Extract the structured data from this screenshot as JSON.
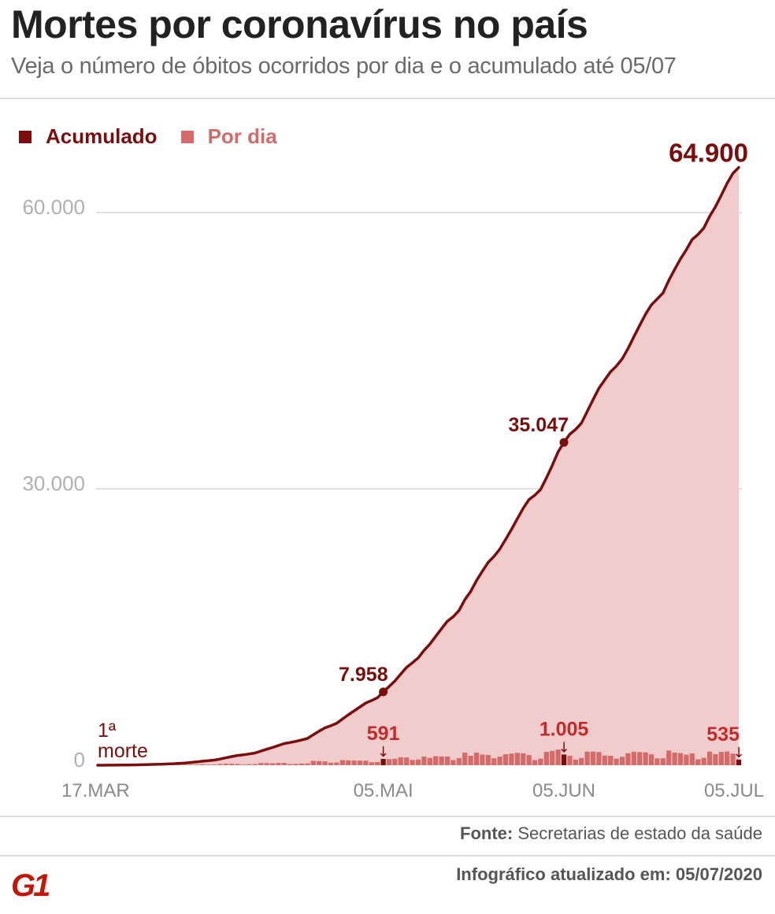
{
  "header": {
    "title": "Mortes por coronavírus no país",
    "subtitle": "Veja o número de óbitos ocorridos por dia e o acumulado até 05/07"
  },
  "legend": {
    "cumulative_label": "Acumulado",
    "daily_label": "Por dia"
  },
  "colors": {
    "cumulative": "#7b0d0d",
    "daily": "#d46a6a",
    "area": "#f0cccc",
    "gridline": "#d6d6d6",
    "tick_label": "#b0b0b0",
    "x_label": "#8a8a8a",
    "brand": "#c4170c"
  },
  "footer": {
    "source_label": "Fonte:",
    "source_text": "Secretarias de estado da saúde",
    "updated": "Infográfico atualizado em: 05/07/2020"
  },
  "logo": {
    "text": "G1",
    "name": "g1-logo"
  },
  "chart_data": {
    "type": "line",
    "title": "Mortes por coronavírus no país",
    "subtitle": "Veja o número de óbitos ocorridos por dia e o acumulado até 05/07",
    "x_start": "17.MAR",
    "x_end": "05.JUL",
    "x_ticks": [
      {
        "label": "17.MAR",
        "index": 0
      },
      {
        "label": "05.MAI",
        "index": 49
      },
      {
        "label": "05.JUN",
        "index": 80
      },
      {
        "label": "05.JUL",
        "index": 110
      }
    ],
    "y_ticks": [
      {
        "label": "0",
        "value": 0
      },
      {
        "label": "30.000",
        "value": 30000
      },
      {
        "label": "60.000",
        "value": 60000
      }
    ],
    "ylim": [
      0,
      65000
    ],
    "series": [
      {
        "name": "Acumulado",
        "style": "line+area",
        "values": [
          1,
          4,
          7,
          11,
          18,
          25,
          34,
          46,
          57,
          77,
          92,
          111,
          136,
          159,
          201,
          240,
          299,
          359,
          432,
          486,
          553,
          667,
          800,
          941,
          1057,
          1124,
          1223,
          1328,
          1532,
          1736,
          1924,
          2141,
          2354,
          2462,
          2587,
          2741,
          2906,
          3313,
          3704,
          4057,
          4286,
          4543,
          5017,
          5466,
          5901,
          6329,
          6750,
          7025,
          7321,
          7958,
          8536,
          9146,
          9897,
          10627,
          11123,
          11653,
          12461,
          13149,
          13993,
          14817,
          15633,
          16118,
          16792,
          17971,
          18859,
          20047,
          21048,
          22013,
          22666,
          23473,
          24512,
          25598,
          26754,
          27878,
          28834,
          29314,
          29937,
          31199,
          32548,
          34021,
          35047,
          35930,
          36455,
          37134,
          38406,
          39680,
          40919,
          41828,
          42720,
          43332,
          44118,
          45241,
          46510,
          47748,
          48954,
          49976,
          50617,
          51271,
          52645,
          53830,
          54971,
          55961,
          57070,
          57622,
          58314,
          59594,
          60632,
          61884,
          63174,
          64265,
          64900
        ]
      },
      {
        "name": "Por dia",
        "style": "bar",
        "values": [
          1,
          3,
          3,
          4,
          7,
          7,
          9,
          12,
          11,
          20,
          15,
          19,
          25,
          23,
          42,
          39,
          59,
          60,
          73,
          54,
          67,
          114,
          133,
          141,
          116,
          67,
          99,
          105,
          204,
          204,
          188,
          217,
          213,
          108,
          125,
          154,
          165,
          407,
          391,
          353,
          229,
          257,
          474,
          449,
          435,
          428,
          421,
          275,
          296,
          591,
          578,
          610,
          751,
          730,
          496,
          530,
          808,
          688,
          844,
          824,
          816,
          485,
          674,
          1179,
          888,
          1188,
          1001,
          965,
          653,
          807,
          1039,
          1086,
          1156,
          1124,
          956,
          480,
          623,
          1262,
          1349,
          1473,
          1005,
          883,
          525,
          679,
          1272,
          1274,
          1239,
          909,
          892,
          612,
          786,
          1123,
          1269,
          1238,
          1206,
          1022,
          641,
          654,
          1374,
          1185,
          1141,
          990,
          1109,
          552,
          692,
          1280,
          1038,
          1252,
          1290,
          1091,
          535
        ]
      }
    ],
    "annotations": [
      {
        "text": "1ª\nmorte",
        "series": "Acumulado",
        "index": 0
      },
      {
        "text": "7.958",
        "series": "Acumulado",
        "index": 49
      },
      {
        "text": "35.047",
        "series": "Acumulado",
        "index": 80
      },
      {
        "text": "64.900",
        "series": "Acumulado",
        "index": 110
      },
      {
        "text": "591",
        "series": "Por dia",
        "index": 49
      },
      {
        "text": "1.005",
        "series": "Por dia",
        "index": 80
      },
      {
        "text": "535",
        "series": "Por dia",
        "index": 110
      }
    ],
    "grid": true,
    "legend_position": "top-left"
  }
}
